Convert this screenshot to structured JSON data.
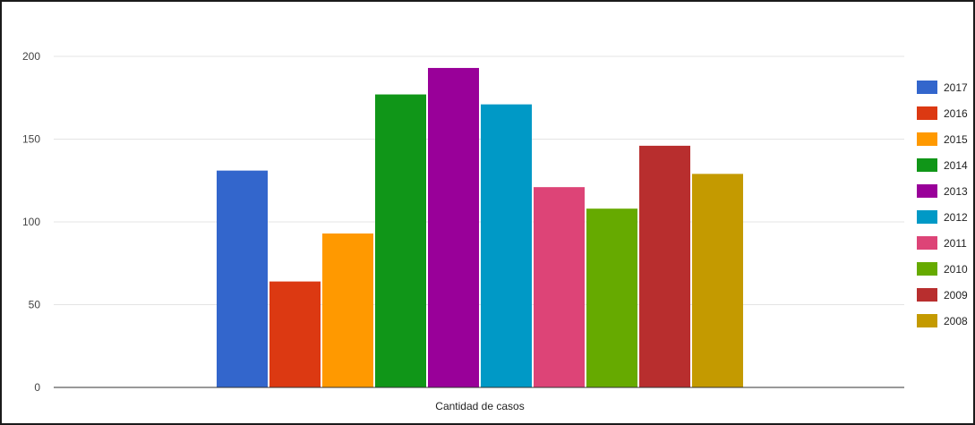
{
  "chart_data": {
    "type": "bar",
    "categories": [
      "Cantidad de casos"
    ],
    "series": [
      {
        "name": "2017",
        "values": [
          131
        ],
        "color": "#3366cc"
      },
      {
        "name": "2016",
        "values": [
          64
        ],
        "color": "#dc3912"
      },
      {
        "name": "2015",
        "values": [
          93
        ],
        "color": "#ff9900"
      },
      {
        "name": "2014",
        "values": [
          177
        ],
        "color": "#109618"
      },
      {
        "name": "2013",
        "values": [
          193
        ],
        "color": "#990099"
      },
      {
        "name": "2012",
        "values": [
          171
        ],
        "color": "#0099c6"
      },
      {
        "name": "2011",
        "values": [
          121
        ],
        "color": "#dd4477"
      },
      {
        "name": "2010",
        "values": [
          108
        ],
        "color": "#66aa00"
      },
      {
        "name": "2009",
        "values": [
          146
        ],
        "color": "#b82e2e"
      },
      {
        "name": "2008",
        "values": [
          129
        ],
        "color": "#c49a00"
      }
    ],
    "yticks": [
      "0",
      "50",
      "100",
      "150",
      "200"
    ],
    "ylim": [
      0,
      200
    ],
    "grid": true,
    "legend": "right"
  }
}
